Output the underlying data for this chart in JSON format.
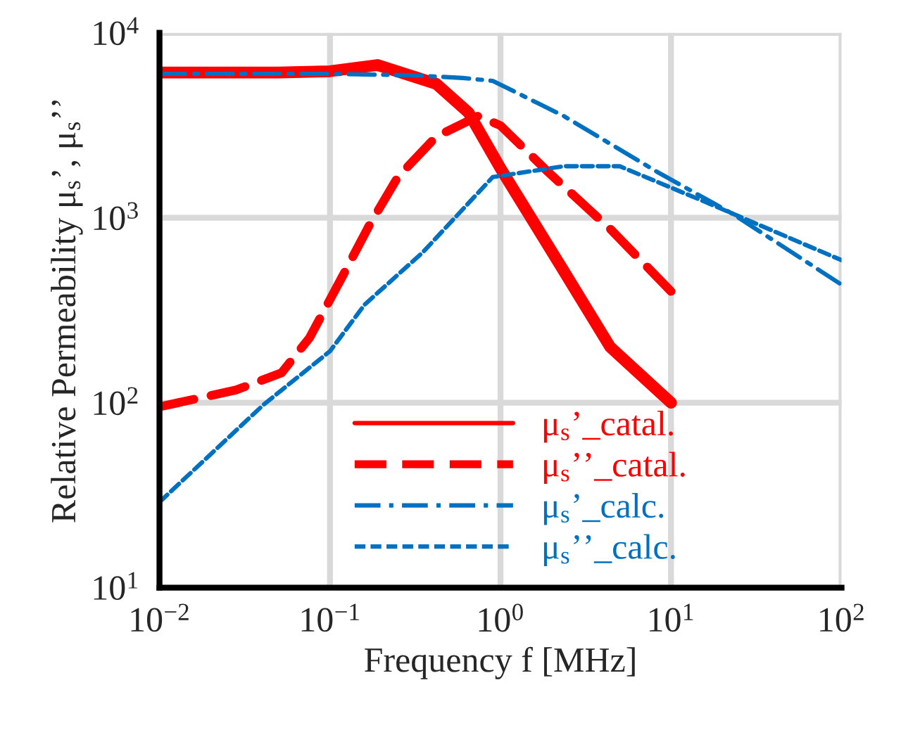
{
  "chart_data": {
    "type": "line",
    "xlabel": "Frequency f [MHz]",
    "ylabel": "Relative Permeability μ$_{s}$’, μ$_{s}$’’",
    "log": "xy",
    "grid": true,
    "legend": "bottom",
    "marker": "none",
    "xlim": [
      0.01,
      100
    ],
    "ylim": [
      10,
      10000
    ],
    "xticks": [
      {
        "value": 0.01,
        "label": "10$^{−2}$"
      },
      {
        "value": 0.1,
        "label": "10$^{−1}$"
      },
      {
        "value": 1,
        "label": "10$^{0}$"
      },
      {
        "value": 10,
        "label": "10$^{1}$"
      },
      {
        "value": 100,
        "label": "10$^{2}$"
      }
    ],
    "yticks": [
      {
        "value": 10,
        "label": "10$^{1}$"
      },
      {
        "value": 100,
        "label": "10$^{2}$"
      },
      {
        "value": 1000,
        "label": "10$^{3}$"
      },
      {
        "value": 10000,
        "label": "10$^{4}$"
      }
    ],
    "series": [
      {
        "name": "μ$_{s}$’_catal.",
        "color": "#ff0000",
        "line_style": "solid",
        "x": [
          0.01,
          0.05,
          0.1,
          0.19,
          0.42,
          0.65,
          1.0,
          2.35,
          4.4,
          10
        ],
        "values": [
          6100,
          6100,
          6200,
          6700,
          5300,
          3700,
          1850,
          515,
          200,
          100
        ]
      },
      {
        "name": "μ$_{s}$’’_catal.",
        "color": "#ff0000",
        "line_style": "dashed",
        "x": [
          0.01,
          0.028,
          0.052,
          0.076,
          0.118,
          0.17,
          0.25,
          0.42,
          0.74,
          1.0,
          1.9,
          4.4,
          10
        ],
        "values": [
          95,
          117,
          145,
          225,
          480,
          910,
          1660,
          2750,
          3550,
          3150,
          1770,
          870,
          400
        ]
      },
      {
        "name": "μ$_{s}$’_calc.",
        "color": "#0070c0",
        "line_style": "dashdot",
        "x": [
          0.01,
          0.1,
          0.3,
          0.6,
          0.9,
          2.35,
          8.3,
          23,
          100
        ],
        "values": [
          6000,
          6000,
          5900,
          5700,
          5500,
          3550,
          1770,
          1050,
          435
        ]
      },
      {
        "name": "μ$_{s}$’’_calc.",
        "color": "#0070c0",
        "line_style": "dotted",
        "x": [
          0.01,
          0.041,
          0.1,
          0.16,
          0.35,
          0.9,
          2.35,
          5,
          15.5,
          100
        ],
        "values": [
          29,
          98,
          190,
          340,
          650,
          1660,
          1900,
          1900,
          1230,
          590
        ]
      }
    ]
  }
}
